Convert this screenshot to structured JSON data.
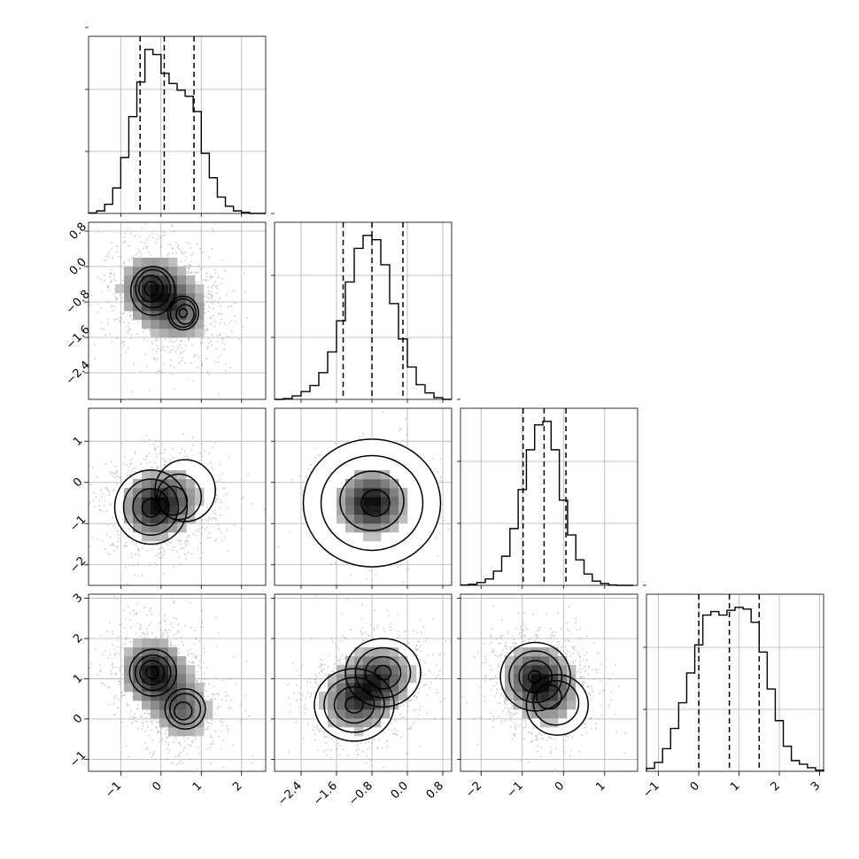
{
  "chart_data": {
    "type": "corner",
    "n_params": 4,
    "grid": true,
    "params": [
      {
        "ticks": [
          -1,
          0,
          1,
          2
        ],
        "tick_labels": [
          "−1",
          "0",
          "1",
          "2"
        ],
        "range": [
          -1.8,
          2.6
        ]
      },
      {
        "ticks": [
          -2.4,
          -1.6,
          -0.8,
          0.0,
          0.8
        ],
        "tick_labels": [
          "−2.4",
          "−1.6",
          "−0.8",
          "0.0",
          "0.8"
        ],
        "range": [
          -3.0,
          1.0
        ]
      },
      {
        "ticks": [
          -2,
          -1,
          0,
          1
        ],
        "tick_labels": [
          "−2",
          "−1",
          "0",
          "1"
        ],
        "range": [
          -2.5,
          1.8
        ]
      },
      {
        "ticks": [
          -1,
          0,
          1,
          2,
          3
        ],
        "tick_labels": [
          "−1",
          "0",
          "1",
          "2",
          "3"
        ],
        "range": [
          -1.3,
          3.1
        ]
      }
    ],
    "quantiles": [
      [
        -0.52,
        0.08,
        0.82
      ],
      [
        -1.45,
        -0.8,
        -0.1
      ],
      [
        -0.98,
        -0.47,
        0.06
      ],
      [
        0.0,
        0.76,
        1.5
      ]
    ],
    "histograms": [
      {
        "bin_edges": [
          -1.8,
          -1.6,
          -1.4,
          -1.2,
          -1.0,
          -0.8,
          -0.6,
          -0.4,
          -0.2,
          0.0,
          0.2,
          0.4,
          0.6,
          0.8,
          1.0,
          1.2,
          1.4,
          1.6,
          1.8,
          2.0,
          2.2,
          2.4,
          2.6
        ],
        "counts": [
          1,
          5,
          18,
          50,
          110,
          190,
          258,
          322,
          312,
          275,
          255,
          242,
          230,
          200,
          118,
          70,
          32,
          14,
          5,
          2,
          0,
          0
        ]
      },
      {
        "bin_edges": [
          -3.0,
          -2.8,
          -2.6,
          -2.4,
          -2.2,
          -2.0,
          -1.8,
          -1.6,
          -1.4,
          -1.2,
          -1.0,
          -0.8,
          -0.6,
          -0.4,
          -0.2,
          0.0,
          0.2,
          0.4,
          0.6,
          0.8,
          1.0
        ],
        "counts": [
          0,
          2,
          8,
          18,
          32,
          62,
          110,
          182,
          272,
          350,
          380,
          370,
          312,
          222,
          140,
          75,
          34,
          15,
          4,
          0
        ]
      },
      {
        "bin_edges": [
          -2.5,
          -2.3,
          -2.1,
          -1.9,
          -1.7,
          -1.5,
          -1.3,
          -1.1,
          -0.9,
          -0.7,
          -0.5,
          -0.3,
          -0.1,
          0.1,
          0.3,
          0.5,
          0.7,
          0.9,
          1.1,
          1.3,
          1.5,
          1.7
        ],
        "counts": [
          1,
          3,
          8,
          18,
          40,
          82,
          160,
          270,
          382,
          452,
          462,
          382,
          240,
          142,
          72,
          32,
          12,
          5,
          1,
          0,
          0
        ]
      },
      {
        "bin_edges": [
          -1.3,
          -1.1,
          -0.9,
          -0.7,
          -0.5,
          -0.3,
          -0.1,
          0.1,
          0.3,
          0.5,
          0.7,
          0.9,
          1.1,
          1.3,
          1.5,
          1.7,
          1.9,
          2.1,
          2.3,
          2.5,
          2.7,
          2.9,
          3.1
        ],
        "counts": [
          5,
          15,
          38,
          72,
          115,
          165,
          212,
          262,
          268,
          262,
          270,
          275,
          272,
          250,
          200,
          138,
          85,
          42,
          18,
          12,
          6,
          2
        ]
      }
    ],
    "pairs": [
      {
        "x_param": 0,
        "y_param": 1,
        "modes": [
          {
            "x": -0.25,
            "y": -0.5,
            "w": 0.6
          },
          {
            "x": 0.55,
            "y": -1.05,
            "w": 0.4
          }
        ],
        "contours": [
          [
            [
              -0.2,
              -0.55,
              0.55
            ],
            [
              0.55,
              -1.05,
              0.38
            ]
          ],
          [
            [
              -0.2,
              -0.5,
              0.43
            ],
            [
              0.55,
              -1.05,
              0.32
            ]
          ],
          [
            [
              -0.25,
              -0.5,
              0.3
            ],
            [
              0.6,
              -1.08,
              0.22
            ]
          ],
          [
            [
              -0.25,
              -0.5,
              0.16
            ],
            [
              0.55,
              -1.05,
              0.1
            ]
          ]
        ]
      },
      {
        "x_param": 0,
        "y_param": 2,
        "modes": [
          {
            "x": -0.2,
            "y": -0.6,
            "w": 0.7
          },
          {
            "x": 0.5,
            "y": -0.3,
            "w": 0.3
          }
        ],
        "contours": [
          [
            [
              -0.25,
              -0.6,
              0.9
            ],
            [
              0.6,
              -0.2,
              0.75
            ]
          ],
          [
            [
              -0.25,
              -0.6,
              0.68
            ],
            [
              0.45,
              -0.35,
              0.55
            ]
          ],
          [
            [
              -0.25,
              -0.6,
              0.45
            ],
            [
              0.3,
              -0.45,
              0.35
            ]
          ],
          [
            [
              -0.25,
              -0.62,
              0.22
            ],
            [
              0.0,
              -0.55,
              0.15
            ]
          ]
        ]
      },
      {
        "x_param": 0,
        "y_param": 3,
        "modes": [
          {
            "x": -0.2,
            "y": 1.2,
            "w": 0.6
          },
          {
            "x": 0.55,
            "y": 0.2,
            "w": 0.4
          }
        ],
        "contours": [
          [
            [
              -0.2,
              1.15,
              0.58
            ],
            [
              0.6,
              0.25,
              0.5
            ]
          ],
          [
            [
              -0.2,
              1.15,
              0.44
            ],
            [
              0.6,
              0.25,
              0.38
            ]
          ],
          [
            [
              -0.22,
              1.15,
              0.3
            ],
            [
              0.55,
              0.2,
              0.22
            ]
          ],
          [
            [
              -0.22,
              1.15,
              0.15
            ]
          ]
        ]
      },
      {
        "x_param": 1,
        "y_param": 2,
        "modes": [
          {
            "x": -0.8,
            "y": -0.5,
            "w": 1.0
          }
        ],
        "contours": [
          [
            [
              -0.8,
              -0.5,
              1.55
            ]
          ],
          [
            [
              -0.8,
              -0.5,
              1.15
            ]
          ],
          [
            [
              -0.8,
              -0.45,
              0.72
            ]
          ],
          [
            [
              -0.72,
              -0.5,
              0.32
            ]
          ]
        ]
      },
      {
        "x_param": 1,
        "y_param": 3,
        "modes": [
          {
            "x": -1.2,
            "y": 0.4,
            "w": 0.5
          },
          {
            "x": -0.6,
            "y": 1.1,
            "w": 0.5
          }
        ],
        "contours": [
          [
            [
              -1.2,
              0.35,
              0.9
            ],
            [
              -0.55,
              1.15,
              0.85
            ]
          ],
          [
            [
              -1.2,
              0.35,
              0.68
            ],
            [
              -0.55,
              1.15,
              0.62
            ]
          ],
          [
            [
              -1.2,
              0.35,
              0.45
            ],
            [
              -0.55,
              1.15,
              0.4
            ]
          ],
          [
            [
              -1.2,
              0.35,
              0.2
            ],
            [
              -0.55,
              1.15,
              0.18
            ]
          ]
        ]
      },
      {
        "x_param": 2,
        "y_param": 3,
        "modes": [
          {
            "x": -0.7,
            "y": 1.1,
            "w": 0.6
          },
          {
            "x": -0.3,
            "y": 0.5,
            "w": 0.4
          }
        ],
        "contours": [
          [
            [
              -0.68,
              1.05,
              0.85
            ],
            [
              -0.15,
              0.35,
              0.75
            ]
          ],
          [
            [
              -0.68,
              1.05,
              0.64
            ],
            [
              -0.18,
              0.4,
              0.55
            ]
          ],
          [
            [
              -0.68,
              1.05,
              0.4
            ],
            [
              -0.35,
              0.55,
              0.3
            ]
          ],
          [
            [
              -0.7,
              1.05,
              0.15
            ]
          ]
        ]
      }
    ]
  }
}
